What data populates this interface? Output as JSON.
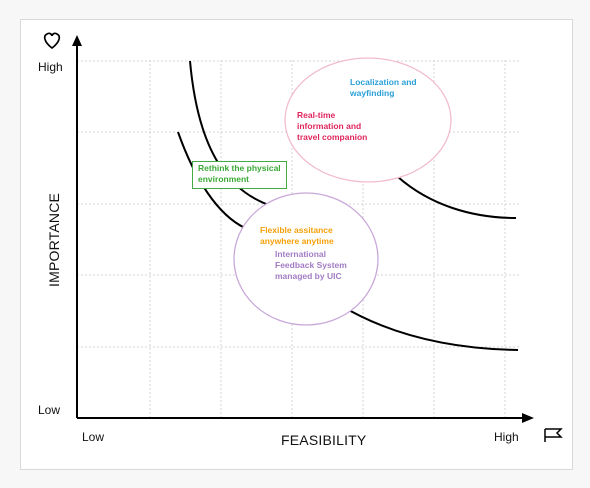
{
  "axes": {
    "x_title": "FEASIBILITY",
    "y_title": "IMPORTANCE",
    "x_low": "Low",
    "x_high": "High",
    "y_low": "Low",
    "y_high": "High",
    "y_icon": "heart-outline-icon",
    "x_icon": "flag-icon"
  },
  "notes": {
    "localization": "Localization and\nwayfinding",
    "realtime": "Real-time\ninformation and\ntravel companion",
    "rethink": "Rethink the physical\nenvironment",
    "flexible": "Flexible assitance\nanywhere anytime",
    "international": "International\nFeedback System\nmanaged by UIC"
  },
  "colors": {
    "blue": "#2b9fd8",
    "red": "#e0245e",
    "green": "#3aaa35",
    "orange": "#f5a00a",
    "purple": "#a37cc4",
    "pink_circle": "#f2bcd0",
    "purple_circle": "#c9a8d9",
    "grid": "#d4d4d4"
  }
}
